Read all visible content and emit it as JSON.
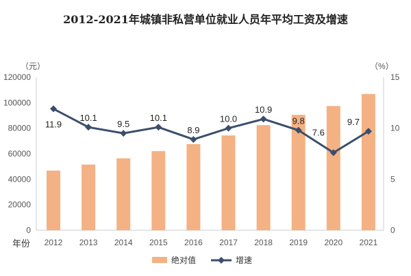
{
  "chart_data": {
    "type": "bar+line",
    "title": "2012-2021年城镇非私营单位就业人员年平均工资及增速",
    "categories": [
      "2012",
      "2013",
      "2014",
      "2015",
      "2016",
      "2017",
      "2018",
      "2019",
      "2020",
      "2021"
    ],
    "xlabel": "年份",
    "ylabel_left": "（元）",
    "ylabel_right": "（%）",
    "ylim_left": [
      0,
      120000
    ],
    "yticks_left": [
      "0",
      "20000",
      "40000",
      "60000",
      "80000",
      "100000",
      "120000"
    ],
    "ylim_right": [
      0,
      15
    ],
    "yticks_right": [
      "0",
      "5",
      "10",
      "15"
    ],
    "grid": false,
    "legend_position": "bottom",
    "series": [
      {
        "name": "绝对值",
        "type": "bar",
        "color": "#F4B183",
        "values": [
          46769,
          51483,
          56360,
          62029,
          67569,
          74318,
          82413,
          90501,
          97379,
          106837
        ]
      },
      {
        "name": "增速",
        "type": "line",
        "axis": "right",
        "color": "#3B4E6B",
        "values": [
          11.9,
          10.1,
          9.5,
          10.1,
          8.9,
          10.0,
          10.9,
          9.8,
          7.6,
          9.7
        ],
        "labels": [
          "11.9",
          "10.1",
          "9.5",
          "10.1",
          "8.9",
          "10.0",
          "10.9",
          "9.8",
          "7.6",
          "9.7"
        ]
      }
    ]
  }
}
